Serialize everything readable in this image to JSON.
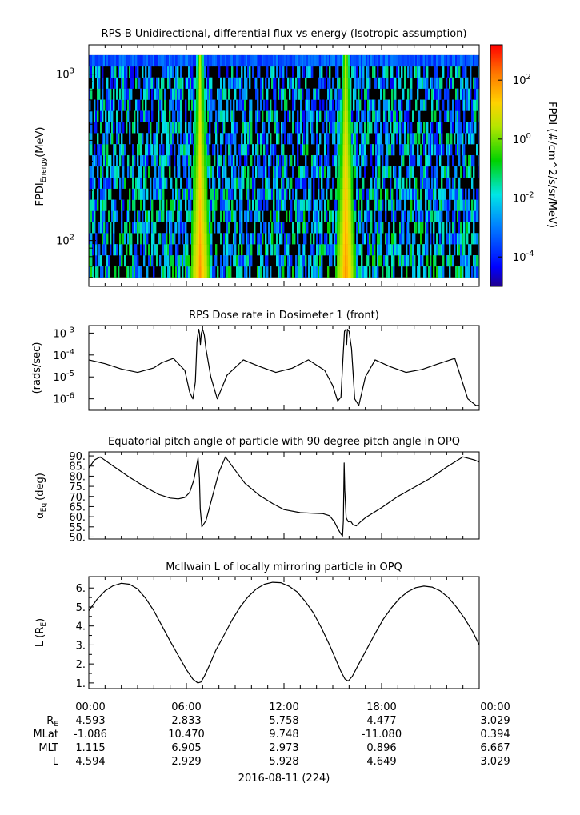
{
  "chart_data": [
    {
      "type": "heatmap",
      "title": "RPS-B  Unidirectional, differential flux vs energy (Isotropic assumption)",
      "ylabel": "FPDI",
      "ylabel_sub": "Energy",
      "ylabel_unit": "(MeV)",
      "yscale": "log",
      "ylim": [
        53,
        1500
      ],
      "yticks": [
        {
          "value": 100,
          "label": "10",
          "exp": "2"
        },
        {
          "value": 1000,
          "label": "10",
          "exp": "3"
        }
      ],
      "energy_range": [
        60,
        1300
      ],
      "colorbar": {
        "label": "FPDI (#/cm^2/s/sr/MeV)",
        "scale": "log",
        "range_exp": [
          -5,
          3.2
        ],
        "ticks": [
          {
            "exp": -4,
            "label": "10",
            "sup": "-4"
          },
          {
            "exp": -2,
            "label": "10",
            "sup": "-2"
          },
          {
            "exp": 0,
            "label": "10",
            "sup": "0"
          },
          {
            "exp": 2,
            "label": "10",
            "sup": "2"
          }
        ]
      },
      "features": [
        {
          "name": "belt crossing",
          "center_hour": 6.85,
          "peak_flux_exp": 2.0
        },
        {
          "name": "belt crossing",
          "center_hour": 15.8,
          "peak_flux_exp": 2.0
        }
      ],
      "background_flux_exp": [
        -4,
        -1.5
      ]
    },
    {
      "type": "line",
      "title": "RPS  Dose rate in Dosimeter 1 (front)",
      "ylabel": "(rads/sec)",
      "yscale": "log",
      "ylim": [
        3e-07,
        0.0022
      ],
      "yticks": [
        {
          "value": 1e-06,
          "label": "10",
          "exp": "-6"
        },
        {
          "value": 1e-05,
          "label": "10",
          "exp": "-5"
        },
        {
          "value": 0.0001,
          "label": "10",
          "exp": "-4"
        },
        {
          "value": 0.001,
          "label": "10",
          "exp": "-3"
        }
      ],
      "x": [
        0,
        1,
        2,
        3,
        4,
        4.5,
        5.2,
        5.9,
        6.2,
        6.4,
        6.55,
        6.65,
        6.72,
        6.76,
        6.8,
        6.86,
        6.92,
        7.0,
        7.1,
        7.2,
        7.5,
        7.9,
        8.5,
        9.5,
        10.5,
        11.5,
        12.5,
        13.5,
        14.5,
        15.0,
        15.3,
        15.5,
        15.62,
        15.72,
        15.8,
        15.85,
        15.9,
        16.0,
        16.15,
        16.35,
        16.6,
        17.0,
        17.6,
        18.5,
        19.5,
        20.5,
        21.5,
        22.5,
        23.3,
        23.8,
        24
      ],
      "y": [
        6e-05,
        4e-05,
        2.3e-05,
        1.6e-05,
        2.6e-05,
        4.5e-05,
        7e-05,
        2e-05,
        2e-06,
        1e-06,
        6e-06,
        0.0004,
        0.001,
        0.0015,
        0.001,
        0.0003,
        0.001,
        0.0015,
        0.0008,
        0.0002,
        1e-05,
        1e-06,
        1.2e-05,
        6e-05,
        3e-05,
        1.6e-05,
        2.5e-05,
        6e-05,
        2e-05,
        4e-06,
        8e-07,
        1.2e-06,
        6e-05,
        0.0012,
        0.0015,
        0.0003,
        0.0015,
        0.0012,
        0.0002,
        1e-06,
        5e-07,
        1e-05,
        6e-05,
        3e-05,
        1.6e-05,
        2.2e-05,
        4e-05,
        7e-05,
        1e-06,
        5e-07,
        5e-07
      ]
    },
    {
      "type": "line",
      "title": "Equatorial pitch angle of particle with 90 degree pitch angle in OPQ",
      "ylabel": "α",
      "ylabel_sub": "Eq",
      "ylabel_unit": "(deg)",
      "ylim": [
        49,
        92
      ],
      "yticks": [
        50,
        55,
        60,
        65,
        70,
        75,
        80,
        85,
        90
      ],
      "x": [
        0,
        0.35,
        0.7,
        1.5,
        2.5,
        3.5,
        4.3,
        5.0,
        5.5,
        5.9,
        6.2,
        6.45,
        6.6,
        6.72,
        6.8,
        6.85,
        6.95,
        7.2,
        7.6,
        8.0,
        8.4,
        8.9,
        9.6,
        10.5,
        11.3,
        12.0,
        13.0,
        13.8,
        14.4,
        14.8,
        15.1,
        15.35,
        15.5,
        15.6,
        15.65,
        15.7,
        15.74,
        15.82,
        15.95,
        16.1,
        16.25,
        16.45,
        16.7,
        17.0,
        18.0,
        19.0,
        20.0,
        21.0,
        22.0,
        23.0,
        23.7,
        24
      ],
      "y": [
        84,
        88,
        89.5,
        85,
        79.5,
        74.5,
        71,
        69.2,
        68.8,
        69.5,
        72,
        78,
        84,
        89,
        79,
        64,
        55,
        58,
        70,
        82,
        89.5,
        84,
        76.5,
        70.5,
        66.5,
        63.5,
        62,
        61.7,
        61.5,
        60.5,
        57.5,
        53.5,
        51.5,
        50.5,
        58,
        86.5,
        73,
        59.5,
        57.5,
        57.7,
        56,
        55.5,
        57.5,
        59.5,
        64.5,
        70,
        74.5,
        79,
        84.5,
        89.5,
        88,
        87
      ]
    },
    {
      "type": "line",
      "title": "McIlwain L of locally mirroring particle in OPQ",
      "ylabel": "L (R",
      "ylabel_sub": "E",
      "ylabel_unit": ")",
      "ylim": [
        0.7,
        6.6
      ],
      "yticks": [
        1,
        2,
        3,
        4,
        5,
        6
      ],
      "yticklabels": [
        "1.",
        "2.",
        "3.",
        "4.",
        "5.",
        "6."
      ],
      "x": [
        0,
        0.5,
        1,
        1.5,
        2,
        2.5,
        3,
        3.5,
        4,
        4.5,
        5,
        5.5,
        6,
        6.4,
        6.7,
        6.9,
        7.1,
        7.4,
        7.8,
        8.3,
        8.8,
        9.3,
        9.8,
        10.3,
        10.8,
        11.3,
        11.8,
        12.3,
        12.8,
        13.3,
        13.8,
        14.3,
        14.8,
        15.2,
        15.5,
        15.75,
        15.95,
        16.2,
        16.6,
        17.1,
        17.6,
        18.1,
        18.6,
        19.1,
        19.6,
        20.1,
        20.6,
        21.1,
        21.6,
        22.1,
        22.6,
        23.1,
        23.6,
        24
      ],
      "y": [
        4.8,
        5.4,
        5.85,
        6.12,
        6.25,
        6.2,
        5.95,
        5.45,
        4.8,
        4.0,
        3.2,
        2.45,
        1.7,
        1.2,
        1.0,
        1.05,
        1.35,
        1.9,
        2.7,
        3.5,
        4.3,
        5.0,
        5.55,
        5.95,
        6.2,
        6.3,
        6.28,
        6.1,
        5.8,
        5.3,
        4.7,
        3.9,
        3.0,
        2.2,
        1.6,
        1.2,
        1.1,
        1.35,
        2.0,
        2.8,
        3.6,
        4.35,
        4.95,
        5.45,
        5.8,
        6.02,
        6.1,
        6.05,
        5.85,
        5.5,
        5.0,
        4.4,
        3.7,
        3.0
      ]
    }
  ],
  "xaxis": {
    "range_hours": [
      0,
      24
    ],
    "ticks": [
      {
        "hour": 0,
        "time": "00:00",
        "re": "4.593",
        "mlat": "-1.086",
        "mlt": "1.115",
        "l": "4.594"
      },
      {
        "hour": 6,
        "time": "06:00",
        "re": "2.833",
        "mlat": "10.470",
        "mlt": "6.905",
        "l": "2.929"
      },
      {
        "hour": 12,
        "time": "12:00",
        "re": "5.758",
        "mlat": "9.748",
        "mlt": "2.973",
        "l": "5.928"
      },
      {
        "hour": 18,
        "time": "18:00",
        "re": "4.477",
        "mlat": "-11.080",
        "mlt": "0.896",
        "l": "4.649"
      },
      {
        "hour": 24,
        "time": "00:00",
        "re": "3.029",
        "mlat": "0.394",
        "mlt": "6.667",
        "l": "3.029"
      }
    ],
    "row_labels": {
      "re": "R",
      "re_sub": "E",
      "mlat": "MLat",
      "mlt": "MLT",
      "l": "L"
    },
    "date_label": "2016-08-11 (224)"
  }
}
